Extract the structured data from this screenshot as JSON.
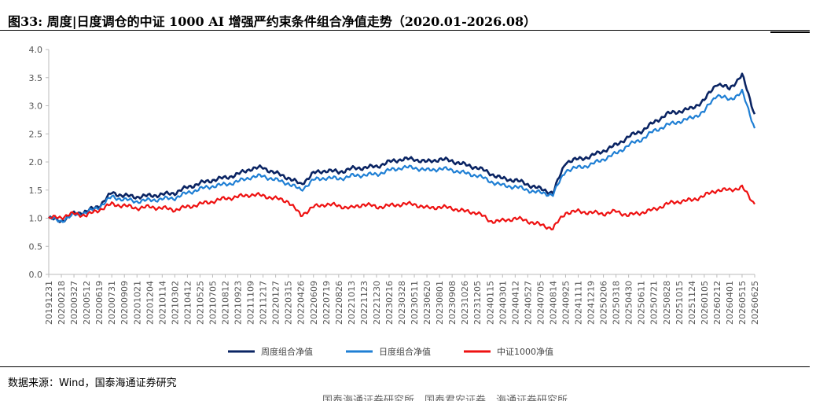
{
  "title": "图33:  周度|日度调仓的中证 1000 AI 增强严约束条件组合净值走势（2020.01-2026.08）",
  "source": "数据来源：Wind，国泰海通证券研究",
  "footer_ghost": "国泰海通证券研究所、国泰君安证券、海通证券研究所",
  "colors": {
    "weekly": "#0a2463",
    "daily": "#1f7fd4",
    "csi1000": "#ee1111"
  },
  "chart_data": {
    "type": "line",
    "xlabel": "",
    "ylabel": "",
    "ylim": [
      0.0,
      4.0
    ],
    "yticks": [
      "0.0",
      "0.5",
      "1.0",
      "1.5",
      "2.0",
      "2.5",
      "3.0",
      "3.5",
      "4.0"
    ],
    "x_tick_labels": [
      "20191231",
      "20200218",
      "20200327",
      "20200512",
      "20200619",
      "20200731",
      "20200909",
      "20201021",
      "20201204",
      "20210114",
      "20210302",
      "20210412",
      "20210525",
      "20210705",
      "20210812",
      "20210923",
      "20211109",
      "20211217",
      "20220127",
      "20220315",
      "20220426",
      "20220609",
      "20220719",
      "20220826",
      "20221013",
      "20221123",
      "20221230",
      "20230216",
      "20230328",
      "20230511",
      "20230620",
      "20230801",
      "20230908",
      "20231026",
      "20231205",
      "20240115",
      "20240301",
      "20240412",
      "20240527",
      "20240705",
      "20240814",
      "20240925",
      "20241111",
      "20241219",
      "20250206",
      "20250318",
      "20250430",
      "20250611",
      "20250721",
      "20250828",
      "20251015",
      "20251124",
      "20260105",
      "20260212",
      "20260401",
      "20260515",
      "20260625"
    ],
    "x": [
      "20191231",
      "20200218",
      "20200327",
      "20200512",
      "20200619",
      "20200731",
      "20200909",
      "20201021",
      "20201204",
      "20210114",
      "20210302",
      "20210412",
      "20210525",
      "20210705",
      "20210812",
      "20210923",
      "20211109",
      "20211217",
      "20220127",
      "20220315",
      "20220426",
      "20220609",
      "20220719",
      "20220826",
      "20221013",
      "20221123",
      "20221230",
      "20230216",
      "20230328",
      "20230511",
      "20230620",
      "20230801",
      "20230908",
      "20231026",
      "20231205",
      "20240115",
      "20240301",
      "20240412",
      "20240527",
      "20240705",
      "20240814",
      "20240925",
      "20241111",
      "20241219",
      "20250206",
      "20250318",
      "20250430",
      "20250611",
      "20250721",
      "20250828",
      "20251015",
      "20251124",
      "20260105",
      "20260212",
      "20260401",
      "20260515",
      "20260625"
    ],
    "series": [
      {
        "name": "周度组合净值",
        "color": "#0a2463",
        "values": [
          1.0,
          0.95,
          1.08,
          1.12,
          1.22,
          1.45,
          1.4,
          1.38,
          1.4,
          1.42,
          1.45,
          1.55,
          1.62,
          1.68,
          1.72,
          1.78,
          1.88,
          1.9,
          1.8,
          1.72,
          1.6,
          1.8,
          1.85,
          1.82,
          1.88,
          1.9,
          1.92,
          2.0,
          2.05,
          2.05,
          2.0,
          2.05,
          2.02,
          1.95,
          1.9,
          1.8,
          1.7,
          1.68,
          1.6,
          1.52,
          1.45,
          2.0,
          2.05,
          2.1,
          2.2,
          2.3,
          2.45,
          2.55,
          2.7,
          2.85,
          2.9,
          2.95,
          3.1,
          3.4,
          3.3,
          3.55,
          2.85
        ]
      },
      {
        "name": "日度组合净值",
        "color": "#1f7fd4",
        "values": [
          1.0,
          0.95,
          1.06,
          1.1,
          1.2,
          1.38,
          1.33,
          1.3,
          1.32,
          1.34,
          1.36,
          1.45,
          1.52,
          1.57,
          1.6,
          1.65,
          1.73,
          1.75,
          1.68,
          1.62,
          1.5,
          1.68,
          1.72,
          1.7,
          1.75,
          1.77,
          1.78,
          1.85,
          1.9,
          1.9,
          1.85,
          1.88,
          1.86,
          1.8,
          1.76,
          1.66,
          1.58,
          1.56,
          1.5,
          1.45,
          1.42,
          1.85,
          1.9,
          1.95,
          2.05,
          2.15,
          2.3,
          2.4,
          2.55,
          2.65,
          2.72,
          2.78,
          2.9,
          3.2,
          3.1,
          3.25,
          2.6
        ]
      },
      {
        "name": "中证1000净值",
        "color": "#ee1111",
        "values": [
          1.0,
          1.02,
          1.08,
          1.05,
          1.15,
          1.25,
          1.22,
          1.18,
          1.2,
          1.18,
          1.15,
          1.2,
          1.25,
          1.3,
          1.35,
          1.38,
          1.42,
          1.4,
          1.35,
          1.3,
          1.05,
          1.2,
          1.25,
          1.22,
          1.18,
          1.25,
          1.2,
          1.22,
          1.25,
          1.25,
          1.18,
          1.2,
          1.18,
          1.12,
          1.1,
          0.95,
          0.95,
          1.0,
          0.95,
          0.88,
          0.82,
          1.1,
          1.12,
          1.1,
          1.08,
          1.12,
          1.05,
          1.1,
          1.15,
          1.25,
          1.3,
          1.32,
          1.4,
          1.5,
          1.5,
          1.55,
          1.25
        ]
      }
    ],
    "legend_position": "bottom-center",
    "grid": false
  }
}
